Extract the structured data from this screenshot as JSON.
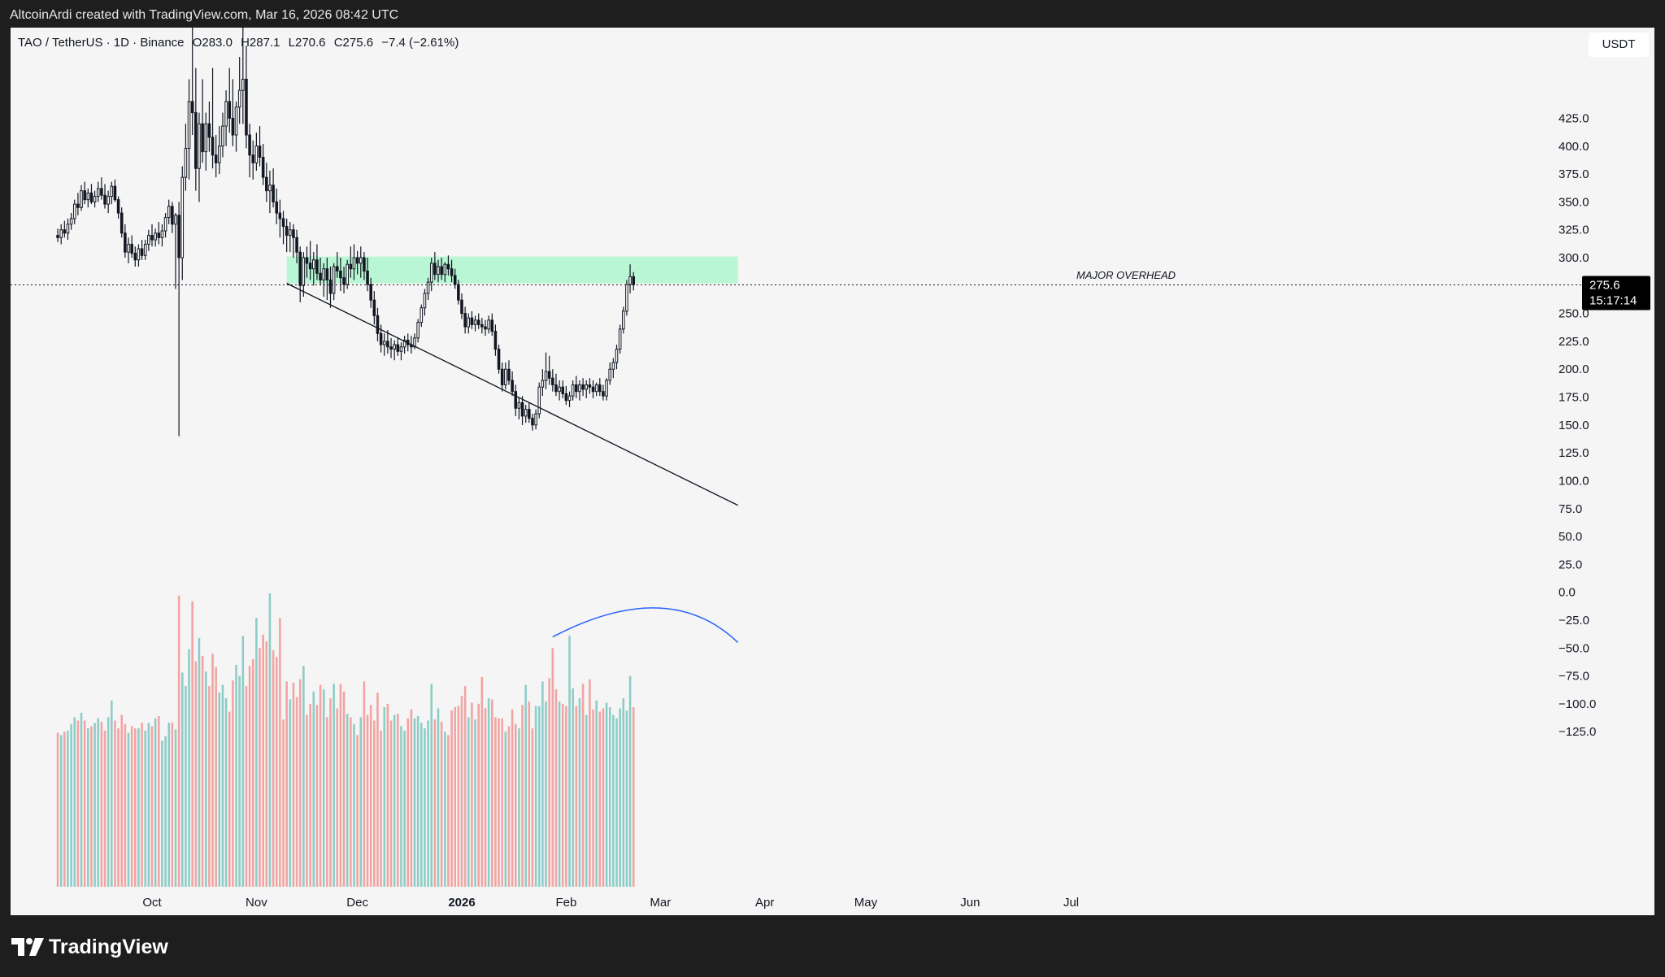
{
  "header": {
    "attribution": "AltcoinArdi created with TradingView.com, Mar 16, 2026 08:42 UTC"
  },
  "legend": {
    "symbol": "TAO / TetherUS · 1D · Binance",
    "open": "O283.0",
    "high": "H287.1",
    "low": "L270.6",
    "close": "C275.6",
    "change": "−7.4 (−2.61%)"
  },
  "currency_button": "USDT",
  "price_tag": {
    "price": "275.6",
    "countdown": "15:17:14"
  },
  "annotation": "MAJOR OVERHEAD",
  "brand": "TradingView",
  "colors": {
    "up": "#26a69a",
    "down": "#ef5350",
    "zone": "#b9f6d3",
    "curve": "#2962ff",
    "candle": "#131722"
  },
  "chart_data": {
    "type": "candlestick",
    "symbol": "TAO / TetherUS",
    "interval": "1D",
    "exchange": "Binance",
    "y_ticks": [
      "425.0",
      "400.0",
      "375.0",
      "350.0",
      "325.0",
      "300.0",
      "250.0",
      "225.0",
      "200.0",
      "175.0",
      "150.0",
      "125.0",
      "100.0",
      "75.0",
      "50.0",
      "25.0",
      "0.0",
      "−25.0",
      "−50.0",
      "−75.0",
      "−100.0",
      "−125.0"
    ],
    "ylim": [
      -140,
      440
    ],
    "x_ticks": [
      "Oct",
      "Nov",
      "Dec",
      "2026",
      "Feb",
      "Mar",
      "Apr",
      "May",
      "Jun",
      "Jul"
    ],
    "x_tick_dates": [
      "2025-10-01",
      "2025-11-01",
      "2025-12-01",
      "2026-01-01",
      "2026-02-01",
      "2026-03-01",
      "2026-04-01",
      "2026-05-01",
      "2026-06-01",
      "2026-07-01"
    ],
    "last_price": 275.6,
    "resistance_zone": {
      "label": "MAJOR OVERHEAD",
      "from_date": "2025-11-10",
      "to_date": "2026-03-24",
      "low": 277,
      "high": 301
    },
    "trendline": [
      {
        "date": "2025-11-10",
        "price": 277
      },
      {
        "date": "2026-03-24",
        "price": 78
      }
    ],
    "volume_curve": [
      {
        "date": "2026-01-28",
        "y": -40
      },
      {
        "date": "2026-02-28",
        "y": -14
      },
      {
        "date": "2026-03-24",
        "y": -45
      }
    ],
    "candles": {
      "start_date": "2025-09-03",
      "ohlc": [
        [
          320,
          326,
          314,
          318
        ],
        [
          318,
          330,
          312,
          325
        ],
        [
          325,
          333,
          318,
          322
        ],
        [
          322,
          335,
          316,
          330
        ],
        [
          330,
          340,
          325,
          335
        ],
        [
          335,
          352,
          330,
          348
        ],
        [
          348,
          358,
          338,
          345
        ],
        [
          345,
          365,
          342,
          360
        ],
        [
          360,
          368,
          348,
          352
        ],
        [
          352,
          362,
          345,
          358
        ],
        [
          358,
          366,
          348,
          350
        ],
        [
          350,
          360,
          345,
          355
        ],
        [
          355,
          368,
          350,
          362
        ],
        [
          362,
          372,
          352,
          356
        ],
        [
          356,
          366,
          344,
          348
        ],
        [
          348,
          360,
          340,
          355
        ],
        [
          355,
          368,
          348,
          364
        ],
        [
          364,
          370,
          350,
          352
        ],
        [
          352,
          355,
          335,
          340
        ],
        [
          340,
          345,
          318,
          322
        ],
        [
          322,
          330,
          300,
          305
        ],
        [
          305,
          318,
          295,
          312
        ],
        [
          312,
          320,
          300,
          304
        ],
        [
          304,
          310,
          292,
          298
        ],
        [
          298,
          312,
          292,
          308
        ],
        [
          308,
          316,
          298,
          302
        ],
        [
          302,
          316,
          298,
          312
        ],
        [
          312,
          325,
          306,
          320
        ],
        [
          320,
          330,
          310,
          316
        ],
        [
          316,
          326,
          310,
          322
        ],
        [
          322,
          332,
          312,
          318
        ],
        [
          318,
          330,
          310,
          324
        ],
        [
          324,
          340,
          318,
          336
        ],
        [
          336,
          352,
          330,
          346
        ],
        [
          346,
          350,
          322,
          330
        ],
        [
          330,
          340,
          272,
          338
        ],
        [
          338,
          350,
          140,
          300
        ],
        [
          300,
          382,
          280,
          372
        ],
        [
          372,
          420,
          360,
          398
        ],
        [
          398,
          460,
          370,
          440
        ],
        [
          440,
          510,
          410,
          430
        ],
        [
          430,
          470,
          360,
          380
        ],
        [
          380,
          430,
          350,
          420
        ],
        [
          420,
          460,
          385,
          395
        ],
        [
          395,
          430,
          378,
          420
        ],
        [
          420,
          440,
          395,
          408
        ],
        [
          408,
          470,
          380,
          392
        ],
        [
          392,
          410,
          372,
          385
        ],
        [
          385,
          418,
          375,
          400
        ],
        [
          400,
          430,
          390,
          418
        ],
        [
          418,
          450,
          400,
          440
        ],
        [
          440,
          470,
          412,
          425
        ],
        [
          425,
          460,
          400,
          410
        ],
        [
          410,
          440,
          395,
          435
        ],
        [
          435,
          480,
          420,
          450
        ],
        [
          450,
          540,
          420,
          460
        ],
        [
          460,
          490,
          398,
          410
        ],
        [
          410,
          420,
          372,
          392
        ],
        [
          392,
          405,
          370,
          385
        ],
        [
          385,
          412,
          378,
          400
        ],
        [
          400,
          418,
          382,
          390
        ],
        [
          390,
          402,
          365,
          372
        ],
        [
          372,
          385,
          350,
          360
        ],
        [
          360,
          378,
          340,
          365
        ],
        [
          365,
          380,
          345,
          350
        ],
        [
          350,
          362,
          330,
          340
        ],
        [
          340,
          352,
          318,
          335
        ],
        [
          335,
          342,
          312,
          328
        ],
        [
          328,
          335,
          305,
          320
        ],
        [
          320,
          332,
          305,
          325
        ],
        [
          325,
          330,
          300,
          318
        ],
        [
          318,
          325,
          295,
          305
        ],
        [
          305,
          310,
          260,
          275
        ],
        [
          275,
          305,
          265,
          300
        ],
        [
          300,
          310,
          282,
          295
        ],
        [
          295,
          315,
          280,
          290
        ],
        [
          290,
          305,
          275,
          298
        ],
        [
          298,
          312,
          280,
          286
        ],
        [
          286,
          300,
          275,
          280
        ],
        [
          280,
          295,
          265,
          290
        ],
        [
          290,
          300,
          262,
          280
        ],
        [
          280,
          292,
          255,
          268
        ],
        [
          268,
          295,
          262,
          292
        ],
        [
          292,
          305,
          282,
          288
        ],
        [
          288,
          300,
          270,
          282
        ],
        [
          282,
          292,
          268,
          276
        ],
        [
          276,
          298,
          272,
          294
        ],
        [
          294,
          310,
          282,
          290
        ],
        [
          290,
          312,
          280,
          300
        ],
        [
          300,
          306,
          285,
          295
        ],
        [
          295,
          310,
          282,
          300
        ],
        [
          300,
          305,
          280,
          288
        ],
        [
          288,
          300,
          270,
          276
        ],
        [
          276,
          282,
          255,
          262
        ],
        [
          262,
          270,
          240,
          248
        ],
        [
          248,
          255,
          225,
          232
        ],
        [
          232,
          240,
          215,
          222
        ],
        [
          222,
          232,
          212,
          225
        ],
        [
          225,
          235,
          214,
          220
        ],
        [
          220,
          228,
          210,
          218
        ],
        [
          218,
          226,
          208,
          222
        ],
        [
          222,
          228,
          212,
          216
        ],
        [
          216,
          224,
          208,
          220
        ],
        [
          220,
          230,
          214,
          226
        ],
        [
          226,
          232,
          216,
          222
        ],
        [
          222,
          230,
          214,
          220
        ],
        [
          220,
          232,
          218,
          228
        ],
        [
          228,
          245,
          224,
          242
        ],
        [
          242,
          258,
          238,
          255
        ],
        [
          255,
          272,
          248,
          268
        ],
        [
          268,
          282,
          262,
          278
        ],
        [
          278,
          300,
          270,
          295
        ],
        [
          295,
          305,
          280,
          285
        ],
        [
          285,
          298,
          278,
          292
        ],
        [
          292,
          300,
          280,
          285
        ],
        [
          285,
          296,
          278,
          294
        ],
        [
          294,
          302,
          284,
          290
        ],
        [
          290,
          298,
          278,
          284
        ],
        [
          284,
          290,
          272,
          276
        ],
        [
          276,
          280,
          258,
          262
        ],
        [
          262,
          268,
          245,
          250
        ],
        [
          250,
          256,
          232,
          238
        ],
        [
          238,
          250,
          232,
          246
        ],
        [
          246,
          252,
          236,
          240
        ],
        [
          240,
          248,
          234,
          244
        ],
        [
          244,
          250,
          236,
          240
        ],
        [
          240,
          246,
          232,
          238
        ],
        [
          238,
          244,
          230,
          236
        ],
        [
          236,
          248,
          232,
          244
        ],
        [
          244,
          250,
          230,
          234
        ],
        [
          234,
          240,
          212,
          218
        ],
        [
          218,
          222,
          196,
          200
        ],
        [
          200,
          206,
          180,
          186
        ],
        [
          186,
          206,
          182,
          200
        ],
        [
          200,
          208,
          186,
          190
        ],
        [
          190,
          198,
          176,
          180
        ],
        [
          180,
          186,
          158,
          165
        ],
        [
          165,
          175,
          155,
          170
        ],
        [
          170,
          176,
          150,
          158
        ],
        [
          158,
          168,
          152,
          164
        ],
        [
          164,
          170,
          152,
          156
        ],
        [
          156,
          160,
          145,
          150
        ],
        [
          150,
          164,
          146,
          160
        ],
        [
          160,
          188,
          156,
          184
        ],
        [
          184,
          200,
          176,
          190
        ],
        [
          190,
          215,
          182,
          198
        ],
        [
          198,
          212,
          186,
          192
        ],
        [
          192,
          200,
          180,
          186
        ],
        [
          186,
          196,
          176,
          180
        ],
        [
          180,
          190,
          172,
          184
        ],
        [
          184,
          190,
          174,
          178
        ],
        [
          178,
          185,
          168,
          172
        ],
        [
          172,
          180,
          166,
          176
        ],
        [
          176,
          190,
          172,
          186
        ],
        [
          186,
          194,
          174,
          180
        ],
        [
          180,
          190,
          172,
          186
        ],
        [
          186,
          192,
          176,
          182
        ],
        [
          182,
          190,
          174,
          186
        ],
        [
          186,
          192,
          178,
          184
        ],
        [
          184,
          190,
          174,
          180
        ],
        [
          180,
          188,
          176,
          186
        ],
        [
          186,
          192,
          176,
          180
        ],
        [
          180,
          186,
          172,
          176
        ],
        [
          176,
          192,
          172,
          190
        ],
        [
          190,
          206,
          186,
          200
        ],
        [
          200,
          210,
          192,
          206
        ],
        [
          206,
          222,
          200,
          218
        ],
        [
          218,
          240,
          214,
          236
        ],
        [
          236,
          256,
          232,
          252
        ],
        [
          252,
          280,
          248,
          276
        ],
        [
          276,
          294,
          268,
          283
        ],
        [
          283,
          287.1,
          270.6,
          275.6
        ]
      ],
      "volume": [
        -126,
        -128,
        -125,
        -124,
        -118,
        -112,
        -115,
        -108,
        -115,
        -122,
        -120,
        -117,
        -113,
        -116,
        -124,
        -112,
        -97,
        -115,
        -122,
        -110,
        -118,
        -126,
        -120,
        -122,
        -122,
        -117,
        -124,
        -117,
        -120,
        -113,
        -111,
        -133,
        -129,
        -117,
        -117,
        -123,
        -3,
        -72,
        -84,
        -51,
        -8,
        -62,
        -41,
        -57,
        -71,
        -84,
        -55,
        -67,
        -90,
        -83,
        -95,
        -107,
        -79,
        -65,
        -75,
        -39,
        -84,
        -66,
        -60,
        -23,
        -50,
        -38,
        -44,
        -1,
        -52,
        -58,
        -23,
        -114,
        -80,
        -96,
        -81,
        -94,
        -78,
        -66,
        -110,
        -100,
        -89,
        -101,
        -83,
        -87,
        -112,
        -95,
        -82,
        -104,
        -82,
        -89,
        -109,
        -112,
        -118,
        -128,
        -112,
        -80,
        -110,
        -101,
        -115,
        -90,
        -124,
        -103,
        -100,
        -115,
        -110,
        -109,
        -120,
        -124,
        -113,
        -105,
        -113,
        -111,
        -117,
        -122,
        -115,
        -82,
        -114,
        -104,
        -116,
        -125,
        -128,
        -106,
        -103,
        -102,
        -93,
        -84,
        -112,
        -99,
        -114,
        -100,
        -76,
        -104,
        -95,
        -96,
        -112,
        -113,
        -113,
        -125,
        -120,
        -105,
        -118,
        -122,
        -101,
        -83,
        -98,
        -122,
        -102,
        -102,
        -80,
        -98,
        -77,
        -50,
        -87,
        -98,
        -100,
        -102,
        -39,
        -86,
        -102,
        -95,
        -82,
        -110,
        -78,
        -105,
        -97,
        -107,
        -104,
        -99,
        -103,
        -110,
        -113,
        -104,
        -95,
        -106,
        -75,
        -103,
        -93,
        -84,
        -76,
        -48,
        -30,
        -113
      ]
    }
  }
}
